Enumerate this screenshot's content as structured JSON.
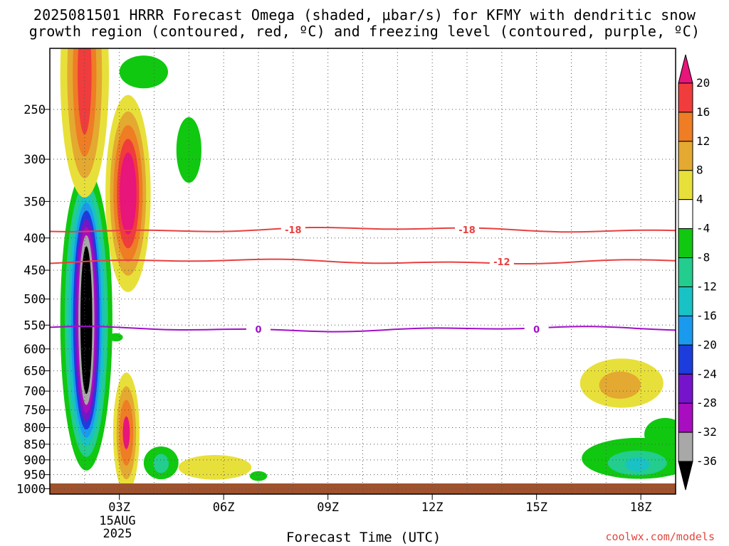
{
  "title": {
    "line1": "2025081501 HRRR Forecast Omega (shaded, μbar/s) for KFMY with dendritic snow",
    "line2": "growth region (contoured, red, ºC) and freezing level (contoured, purple, ºC)"
  },
  "credit": "coolwx.com/models",
  "chart_data": {
    "type": "heatmap",
    "xlabel": "Forecast Time (UTC)",
    "x_tick_labels": [
      "03Z",
      "06Z",
      "09Z",
      "12Z",
      "15Z",
      "18Z"
    ],
    "x_tick_hours": [
      3,
      6,
      9,
      12,
      15,
      18
    ],
    "x_date_label": [
      "15AUG",
      "2025"
    ],
    "xlim_hours": [
      1,
      19
    ],
    "y_scale": "log-pressure (inverted)",
    "ylim_mb": [
      1020,
      200
    ],
    "y_ticks": [
      250,
      300,
      350,
      400,
      450,
      500,
      550,
      600,
      650,
      700,
      750,
      800,
      850,
      900,
      950,
      1000
    ],
    "grid": true,
    "colorbar": {
      "labels": [
        "20",
        "16",
        "12",
        "8",
        "4",
        "-4",
        "-8",
        "-12",
        "-16",
        "-20",
        "-24",
        "-28",
        "-32",
        "-36"
      ],
      "colors": [
        "#e8157a",
        "#f03c3c",
        "#ee7d24",
        "#e4a930",
        "#e8e03a",
        "#ffffff",
        "#10c810",
        "#22cd8e",
        "#19c2c4",
        "#1a9aee",
        "#1c3cdc",
        "#7614cc",
        "#a80dc0",
        "#a8a8a8",
        "#000000"
      ]
    },
    "contours": [
      {
        "label": "-18",
        "color": "#e84040",
        "level_mb": 388,
        "label_hours": [
          8.0,
          13.0
        ]
      },
      {
        "label": "-12",
        "color": "#e84040",
        "level_mb": 436,
        "label_hours": [
          14.0
        ]
      },
      {
        "label": "0",
        "color": "#a010c8",
        "level_mb": 558,
        "label_hours": [
          7.0,
          15.0
        ]
      }
    ],
    "omega_features": [
      {
        "hour": 2.0,
        "pmb": 548,
        "note": "strong ascent core, below -36"
      },
      {
        "hour": 2.0,
        "pmb": 225,
        "note": "descent, above 16"
      },
      {
        "hour": 3.2,
        "pmb": 335,
        "note": "descent, above 20"
      },
      {
        "hour": 3.2,
        "pmb": 830,
        "note": "descent, above 16"
      },
      {
        "hour": 17.3,
        "pmb": 680,
        "note": "descent, above 8"
      },
      {
        "hour": 17.8,
        "pmb": 900,
        "note": "ascent, below -12"
      }
    ]
  }
}
